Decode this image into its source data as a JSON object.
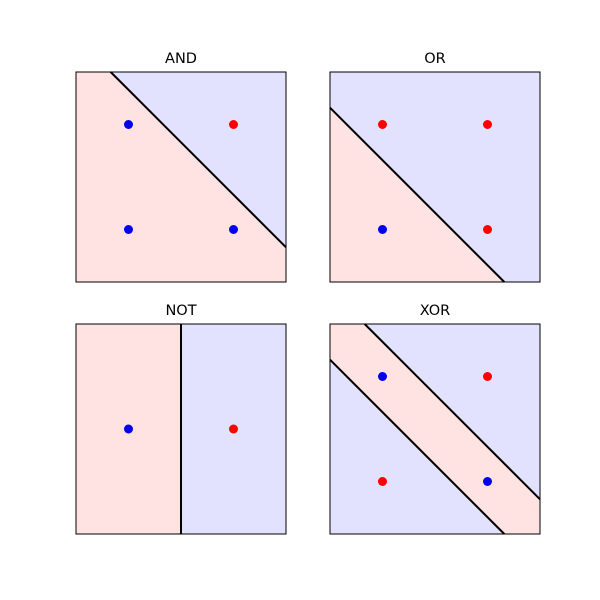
{
  "colors": {
    "region_a": "#ffe2e2",
    "region_b": "#e2e2ff",
    "point_red": "#ff0000",
    "point_blue": "#0000ee",
    "boundary": "#000000",
    "frame": "#000000"
  },
  "chart_data": [
    {
      "type": "scatter",
      "title": "AND",
      "xlim": [
        -0.5,
        1.5
      ],
      "ylim": [
        -0.5,
        1.5
      ],
      "grid": false,
      "points": [
        {
          "x": 0,
          "y": 0,
          "color": "blue"
        },
        {
          "x": 1,
          "y": 0,
          "color": "blue"
        },
        {
          "x": 0,
          "y": 1,
          "color": "blue"
        },
        {
          "x": 1,
          "y": 1,
          "color": "red"
        }
      ],
      "boundaries": [
        [
          [
            -0.17,
            1.5
          ],
          [
            1.5,
            -0.17
          ]
        ]
      ],
      "regions": [
        {
          "polygon": [
            [
              -0.5,
              -0.5
            ],
            [
              1.5,
              -0.5
            ],
            [
              1.5,
              -0.17
            ],
            [
              -0.17,
              1.5
            ],
            [
              -0.5,
              1.5
            ]
          ],
          "color": "region_a"
        },
        {
          "polygon": [
            [
              -0.17,
              1.5
            ],
            [
              1.5,
              1.5
            ],
            [
              1.5,
              -0.17
            ]
          ],
          "color": "region_b"
        }
      ]
    },
    {
      "type": "scatter",
      "title": "OR",
      "xlim": [
        -0.5,
        1.5
      ],
      "ylim": [
        -0.5,
        1.5
      ],
      "grid": false,
      "points": [
        {
          "x": 0,
          "y": 0,
          "color": "blue"
        },
        {
          "x": 1,
          "y": 0,
          "color": "red"
        },
        {
          "x": 0,
          "y": 1,
          "color": "red"
        },
        {
          "x": 1,
          "y": 1,
          "color": "red"
        }
      ],
      "boundaries": [
        [
          [
            -0.5,
            1.16
          ],
          [
            1.16,
            -0.5
          ]
        ]
      ],
      "regions": [
        {
          "polygon": [
            [
              -0.5,
              -0.5
            ],
            [
              1.16,
              -0.5
            ],
            [
              -0.5,
              1.16
            ]
          ],
          "color": "region_a"
        },
        {
          "polygon": [
            [
              1.16,
              -0.5
            ],
            [
              1.5,
              -0.5
            ],
            [
              1.5,
              1.5
            ],
            [
              -0.5,
              1.5
            ],
            [
              -0.5,
              1.16
            ]
          ],
          "color": "region_b"
        }
      ]
    },
    {
      "type": "scatter",
      "title": "NOT",
      "xlim": [
        -0.5,
        1.5
      ],
      "ylim": [
        -0.5,
        1.5
      ],
      "grid": false,
      "points": [
        {
          "x": 0,
          "y": 0.5,
          "color": "blue"
        },
        {
          "x": 1,
          "y": 0.5,
          "color": "red"
        }
      ],
      "boundaries": [
        [
          [
            0.5,
            -0.5
          ],
          [
            0.5,
            1.5
          ]
        ]
      ],
      "regions": [
        {
          "polygon": [
            [
              -0.5,
              -0.5
            ],
            [
              0.5,
              -0.5
            ],
            [
              0.5,
              1.5
            ],
            [
              -0.5,
              1.5
            ]
          ],
          "color": "region_a"
        },
        {
          "polygon": [
            [
              0.5,
              -0.5
            ],
            [
              1.5,
              -0.5
            ],
            [
              1.5,
              1.5
            ],
            [
              0.5,
              1.5
            ]
          ],
          "color": "region_b"
        }
      ]
    },
    {
      "type": "scatter",
      "title": "XOR",
      "xlim": [
        -0.5,
        1.5
      ],
      "ylim": [
        -0.5,
        1.5
      ],
      "grid": false,
      "points": [
        {
          "x": 0,
          "y": 0,
          "color": "red"
        },
        {
          "x": 1,
          "y": 0,
          "color": "blue"
        },
        {
          "x": 0,
          "y": 1,
          "color": "blue"
        },
        {
          "x": 1,
          "y": 1,
          "color": "red"
        }
      ],
      "boundaries": [
        [
          [
            -0.5,
            1.16
          ],
          [
            1.16,
            -0.5
          ]
        ],
        [
          [
            -0.17,
            1.5
          ],
          [
            1.5,
            -0.17
          ]
        ]
      ],
      "regions": [
        {
          "polygon": [
            [
              -0.5,
              -0.5
            ],
            [
              1.16,
              -0.5
            ],
            [
              -0.5,
              1.16
            ]
          ],
          "color": "region_b"
        },
        {
          "polygon": [
            [
              1.16,
              -0.5
            ],
            [
              1.5,
              -0.5
            ],
            [
              1.5,
              -0.17
            ],
            [
              -0.17,
              1.5
            ],
            [
              -0.5,
              1.5
            ],
            [
              -0.5,
              1.16
            ]
          ],
          "color": "region_a"
        },
        {
          "polygon": [
            [
              -0.17,
              1.5
            ],
            [
              1.5,
              1.5
            ],
            [
              1.5,
              -0.17
            ]
          ],
          "color": "region_b"
        }
      ]
    }
  ]
}
